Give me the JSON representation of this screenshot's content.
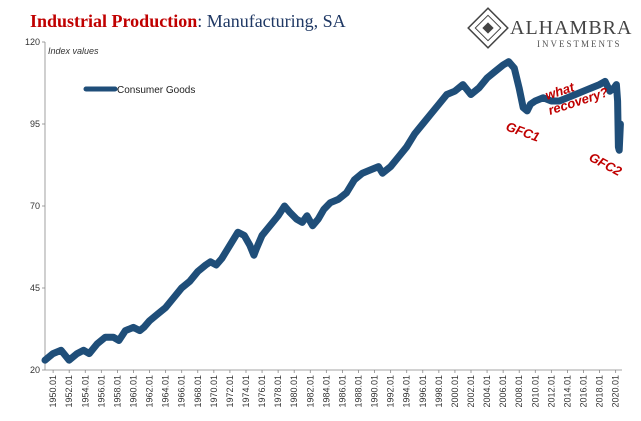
{
  "header": {
    "title_main": "Industrial Production",
    "title_sub": ": Manufacturing, SA",
    "title_main_color": "#c00000",
    "title_sub_color": "#1f3864"
  },
  "logo": {
    "word": "ALHAMBRA",
    "sub": "INVESTMENTS"
  },
  "colors": {
    "series": "#1f4e79",
    "annotation": "#c00000"
  },
  "chart_data": {
    "type": "line",
    "unit_label": "Index values",
    "ylim": [
      20,
      120
    ],
    "y_ticks": [
      20,
      45,
      70,
      95,
      120
    ],
    "x_tick_labels": [
      "1950.01",
      "1952.01",
      "1954.01",
      "1956.01",
      "1958.01",
      "1960.01",
      "1962.01",
      "1964.01",
      "1966.01",
      "1968.01",
      "1970.01",
      "1972.01",
      "1974.01",
      "1976.01",
      "1978.01",
      "1980.01",
      "1982.01",
      "1984.01",
      "1986.01",
      "1988.01",
      "1990.01",
      "1992.01",
      "1994.01",
      "1996.01",
      "1998.01",
      "2000.01",
      "2002.01",
      "2004.01",
      "2006.01",
      "2008.01",
      "2010.01",
      "2012.01",
      "2014.01",
      "2016.01",
      "2018.01",
      "2020.01"
    ],
    "grid": false,
    "legend_placement": "top-left",
    "series": [
      {
        "name": "Consumer Goods",
        "x": [
          1949.0,
          1950.0,
          1951.0,
          1952.0,
          1953.0,
          1953.8,
          1954.5,
          1955.5,
          1956.5,
          1957.5,
          1958.2,
          1959.0,
          1960.0,
          1960.8,
          1961.3,
          1962.0,
          1963.0,
          1964.0,
          1965.0,
          1966.0,
          1967.0,
          1968.0,
          1969.0,
          1969.6,
          1970.3,
          1971.0,
          1972.0,
          1973.0,
          1973.8,
          1974.5,
          1975.0,
          1975.3,
          1976.0,
          1977.0,
          1978.0,
          1978.8,
          1979.5,
          1980.3,
          1981.0,
          1981.6,
          1982.3,
          1983.0,
          1983.7,
          1984.5,
          1985.5,
          1986.5,
          1987.5,
          1988.5,
          1989.5,
          1990.5,
          1991.0,
          1992.0,
          1993.0,
          1994.0,
          1995.0,
          1996.0,
          1997.0,
          1998.0,
          1999.0,
          2000.0,
          2001.0,
          2002.0,
          2003.0,
          2004.0,
          2005.0,
          2006.0,
          2006.7,
          2007.4,
          2008.0,
          2008.5,
          2009.0,
          2009.4,
          2010.0,
          2011.0,
          2012.0,
          2013.0,
          2014.0,
          2015.0,
          2016.0,
          2017.0,
          2018.0,
          2018.7,
          2019.3,
          2019.8,
          2020.1,
          2020.25,
          2020.35,
          2020.45,
          2020.6
        ],
        "values": [
          23,
          25,
          26,
          23,
          25,
          26,
          25,
          28,
          30,
          30,
          29,
          32,
          33,
          32,
          33,
          35,
          37,
          39,
          42,
          45,
          47,
          50,
          52,
          53,
          52,
          54,
          58,
          62,
          61,
          58,
          55,
          57,
          61,
          64,
          67,
          70,
          68,
          66,
          65,
          67,
          64,
          66,
          69,
          71,
          72,
          74,
          78,
          80,
          81,
          82,
          80,
          82,
          85,
          88,
          92,
          95,
          98,
          101,
          104,
          105,
          107,
          104,
          106,
          109,
          111,
          113,
          114,
          112,
          106,
          100,
          99,
          101,
          102,
          103,
          102,
          102,
          103,
          104,
          105,
          106,
          107,
          108,
          105,
          106,
          107,
          102,
          88,
          87,
          95
        ]
      }
    ],
    "annotations": [
      "what",
      "recovery?",
      "GFC1",
      "GFC2"
    ]
  }
}
